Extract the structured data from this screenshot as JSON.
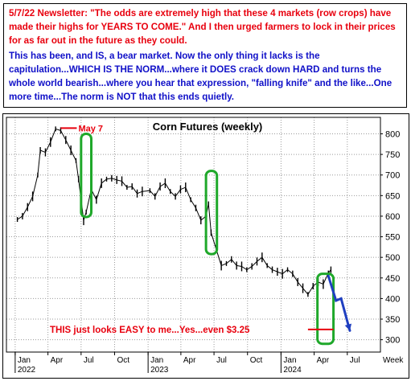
{
  "note": {
    "line1": "5/7/22  Newsletter: \"The odds are extremely high that these 4 markets (row crops) have made their highs for YEARS TO COME.\" And I then urged farmers to lock in their prices for as far out in the future as they could.",
    "line2": "This has been, and IS, a bear market. Now the only thing it lacks is the capitulation...WHICH IS THE NORM...where it DOES crack down HARD and turns the whole world bearish...where you hear that expression, \"falling knife\" and the like...One more time...The norm is NOT that this ends quietly."
  },
  "chart_data": {
    "type": "line",
    "title": "Corn Futures (weekly)",
    "xlabel": "",
    "ylabel": "",
    "x_axis_label_right": "Week",
    "ylim": [
      270,
      840
    ],
    "yticks": [
      300,
      350,
      400,
      450,
      500,
      550,
      600,
      650,
      700,
      750,
      800
    ],
    "x_tick_labels": [
      "Jan",
      "Apr",
      "Jul",
      "Oct",
      "Jan",
      "Apr",
      "Jul",
      "Oct",
      "Jan",
      "Apr",
      "Jul"
    ],
    "x_tick_dates": [
      "2022-01",
      "2022-04",
      "2022-07",
      "2022-10",
      "2023-01",
      "2023-04",
      "2023-07",
      "2023-10",
      "2024-01",
      "2024-04",
      "2024-07"
    ],
    "year_labels": [
      "2022",
      "2023",
      "2024"
    ],
    "grid": true,
    "annotations": {
      "may7": "May 7",
      "target": "THIS just looks EASY to me...Yes...even $3.25"
    },
    "colors": {
      "price": "#000000",
      "annotation_red": "#e8000e",
      "highlight_green": "#1fa82a",
      "projection_blue": "#1f3fc0"
    },
    "series": [
      {
        "x": [
          "2022-01-07",
          "2022-01-21",
          "2022-02-04",
          "2022-02-18",
          "2022-03-04",
          "2022-03-11",
          "2022-03-25",
          "2022-04-08",
          "2022-04-22",
          "2022-05-06",
          "2022-05-20",
          "2022-06-03",
          "2022-06-17",
          "2022-06-24",
          "2022-07-01",
          "2022-07-08",
          "2022-07-15",
          "2022-07-29",
          "2022-08-12",
          "2022-08-26",
          "2022-09-09",
          "2022-09-23",
          "2022-10-07",
          "2022-10-21",
          "2022-11-04",
          "2022-11-18",
          "2022-12-02",
          "2022-12-16",
          "2023-01-06",
          "2023-01-20",
          "2023-02-03",
          "2023-02-17",
          "2023-03-03",
          "2023-03-17",
          "2023-03-31",
          "2023-04-14",
          "2023-04-28",
          "2023-05-12",
          "2023-05-26",
          "2023-06-09",
          "2023-06-16",
          "2023-06-23",
          "2023-07-07",
          "2023-07-21",
          "2023-08-04",
          "2023-08-18",
          "2023-09-01",
          "2023-09-15",
          "2023-09-29",
          "2023-10-13",
          "2023-10-27",
          "2023-11-10",
          "2023-11-24",
          "2023-12-08",
          "2023-12-22",
          "2024-01-05",
          "2024-01-19",
          "2024-02-02",
          "2024-02-16",
          "2024-03-01",
          "2024-03-15",
          "2024-03-29",
          "2024-04-12",
          "2024-04-26",
          "2024-05-10",
          "2024-05-17"
        ],
        "values": [
          592,
          600,
          622,
          648,
          700,
          760,
          755,
          780,
          812,
          808,
          785,
          760,
          735,
          690,
          640,
          590,
          610,
          665,
          640,
          680,
          690,
          692,
          688,
          685,
          670,
          672,
          655,
          660,
          662,
          648,
          672,
          680,
          660,
          648,
          665,
          670,
          640,
          620,
          590,
          600,
          630,
          560,
          520,
          480,
          485,
          495,
          480,
          478,
          470,
          478,
          490,
          500,
          480,
          470,
          465,
          460,
          470,
          460,
          440,
          425,
          410,
          430,
          440,
          435,
          462,
          470
        ]
      }
    ]
  }
}
